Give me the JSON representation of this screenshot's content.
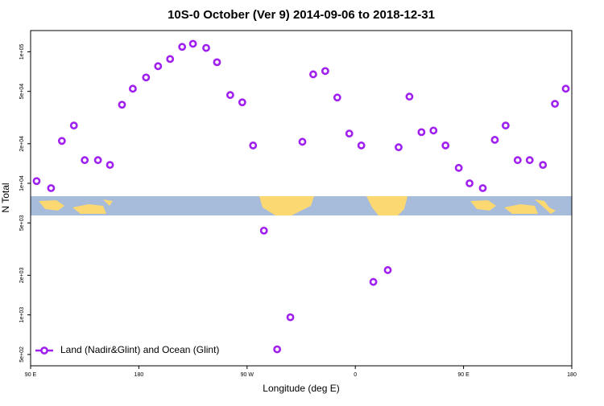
{
  "chart_data": {
    "type": "scatter",
    "title": "10S-0 October (Ver 9)   2014-09-06 to 2018-12-31",
    "x_label": "Longitude (deg E)",
    "y_label": "N Total",
    "ylog": true,
    "grid": false,
    "legend": "bottom-left",
    "xlim": [
      90,
      540
    ],
    "xticks": [
      {
        "value": 90,
        "label": "90 E"
      },
      180,
      {
        "value": 270,
        "label": "90 W"
      },
      {
        "value": 360,
        "label": "0"
      },
      {
        "value": 450,
        "label": "90 E"
      },
      {
        "value": 540,
        "label": "180"
      }
    ],
    "ylim": [
      410,
      145000
    ],
    "yticks": [
      {
        "value": 500,
        "label": "5e+02"
      },
      {
        "value": 1000,
        "label": "1e+03"
      },
      {
        "value": 2000,
        "label": "2e+03"
      },
      {
        "value": 5000,
        "label": "5e+03"
      },
      {
        "value": 10000,
        "label": "1e+04"
      },
      {
        "value": 20000,
        "label": "2e+04"
      },
      {
        "value": 50000,
        "label": "5e+04"
      },
      {
        "value": 100000,
        "label": "1e+05"
      }
    ],
    "series": [
      {
        "name": "Land (Nadir&Glint) and Ocean (Glint)",
        "color": "#a020f0",
        "x": [
          95,
          107,
          116,
          126,
          135,
          146,
          156,
          166,
          175,
          186,
          196,
          206,
          216,
          225,
          236,
          245,
          256,
          266,
          275,
          284,
          295,
          306,
          316,
          325,
          335,
          345,
          355,
          365,
          375,
          387,
          396,
          405,
          415,
          425,
          435,
          446,
          455,
          466,
          476,
          485,
          495,
          505,
          516,
          526,
          535
        ],
        "values": [
          10400,
          9190,
          21000,
          27500,
          15000,
          15000,
          13800,
          39600,
          52400,
          63800,
          77700,
          88100,
          109000,
          115000,
          107000,
          83300,
          46900,
          41300,
          19400,
          4370,
          547,
          959,
          20700,
          67400,
          71400,
          44900,
          23900,
          19400,
          1780,
          2190,
          18800,
          45600,
          24500,
          25200,
          19400,
          13100,
          10000,
          9190,
          21400,
          27500,
          15000,
          15000,
          13800,
          40200,
          52400
        ]
      }
    ]
  }
}
